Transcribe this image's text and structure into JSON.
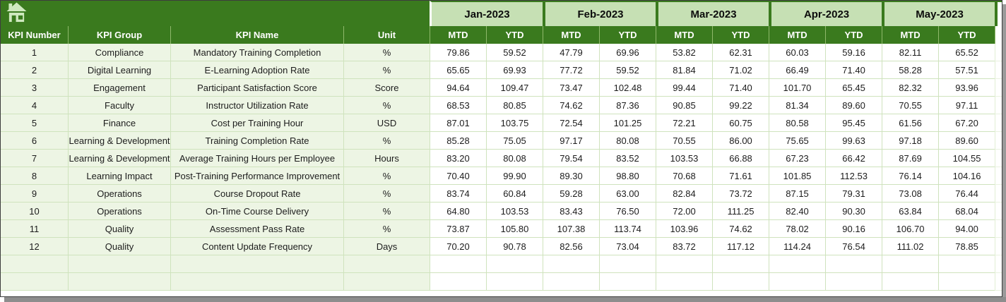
{
  "colors": {
    "header_dark_green": "#3A7A1E",
    "month_light_green": "#C6E0B4",
    "left_column_bg": "#EDF5E4",
    "gridline_green": "#CFE3BD",
    "header_text": "#ffffff",
    "body_text": "#1c1c1c",
    "frame_shadow_gray": "#8d8d8d"
  },
  "table": {
    "home_icon": "home",
    "left_headers": [
      "KPI Number",
      "KPI Group",
      "KPI Name",
      "Unit"
    ],
    "months": [
      "Jan-2023",
      "Feb-2023",
      "Mar-2023",
      "Apr-2023",
      "May-2023"
    ],
    "sub_headers": [
      "MTD",
      "YTD"
    ],
    "rows": [
      {
        "kpi_number": "1",
        "kpi_group": "Compliance",
        "kpi_name": "Mandatory Training Completion",
        "unit": "%",
        "values": [
          "79.86",
          "59.52",
          "47.79",
          "69.96",
          "53.82",
          "62.31",
          "60.03",
          "59.16",
          "82.11",
          "65.52"
        ]
      },
      {
        "kpi_number": "2",
        "kpi_group": "Digital Learning",
        "kpi_name": "E-Learning Adoption Rate",
        "unit": "%",
        "values": [
          "65.65",
          "69.93",
          "77.72",
          "59.52",
          "81.84",
          "71.02",
          "66.49",
          "71.40",
          "58.28",
          "57.51"
        ]
      },
      {
        "kpi_number": "3",
        "kpi_group": "Engagement",
        "kpi_name": "Participant Satisfaction Score",
        "unit": "Score",
        "values": [
          "94.64",
          "109.47",
          "73.47",
          "102.48",
          "99.44",
          "71.40",
          "101.70",
          "65.45",
          "82.32",
          "93.96"
        ]
      },
      {
        "kpi_number": "4",
        "kpi_group": "Faculty",
        "kpi_name": "Instructor Utilization Rate",
        "unit": "%",
        "values": [
          "68.53",
          "80.85",
          "74.62",
          "87.36",
          "90.85",
          "99.22",
          "81.34",
          "89.60",
          "70.55",
          "97.11"
        ]
      },
      {
        "kpi_number": "5",
        "kpi_group": "Finance",
        "kpi_name": "Cost per Training Hour",
        "unit": "USD",
        "values": [
          "87.01",
          "103.75",
          "72.54",
          "101.25",
          "72.21",
          "60.75",
          "80.58",
          "95.45",
          "61.56",
          "67.20"
        ]
      },
      {
        "kpi_number": "6",
        "kpi_group": "Learning & Development",
        "kpi_name": "Training Completion Rate",
        "unit": "%",
        "values": [
          "85.28",
          "75.05",
          "97.17",
          "80.08",
          "70.55",
          "86.00",
          "75.65",
          "99.63",
          "97.18",
          "89.60"
        ]
      },
      {
        "kpi_number": "7",
        "kpi_group": "Learning & Development",
        "kpi_name": "Average Training Hours per Employee",
        "unit": "Hours",
        "values": [
          "83.20",
          "80.08",
          "79.54",
          "83.52",
          "103.53",
          "66.88",
          "67.23",
          "66.42",
          "87.69",
          "104.55"
        ]
      },
      {
        "kpi_number": "8",
        "kpi_group": "Learning Impact",
        "kpi_name": "Post-Training Performance Improvement",
        "unit": "%",
        "values": [
          "70.40",
          "99.90",
          "89.30",
          "98.80",
          "70.68",
          "71.61",
          "101.85",
          "112.53",
          "76.14",
          "104.16"
        ]
      },
      {
        "kpi_number": "9",
        "kpi_group": "Operations",
        "kpi_name": "Course Dropout Rate",
        "unit": "%",
        "values": [
          "83.74",
          "60.84",
          "59.28",
          "63.00",
          "82.84",
          "73.72",
          "87.15",
          "79.31",
          "73.08",
          "76.44"
        ]
      },
      {
        "kpi_number": "10",
        "kpi_group": "Operations",
        "kpi_name": "On-Time Course Delivery",
        "unit": "%",
        "values": [
          "64.80",
          "103.53",
          "83.43",
          "76.50",
          "72.00",
          "111.25",
          "82.40",
          "90.30",
          "63.84",
          "68.04"
        ]
      },
      {
        "kpi_number": "11",
        "kpi_group": "Quality",
        "kpi_name": "Assessment Pass Rate",
        "unit": "%",
        "values": [
          "73.87",
          "105.80",
          "107.38",
          "113.74",
          "103.96",
          "74.62",
          "78.02",
          "90.16",
          "106.70",
          "94.00"
        ]
      },
      {
        "kpi_number": "12",
        "kpi_group": "Quality",
        "kpi_name": "Content Update Frequency",
        "unit": "Days",
        "values": [
          "70.20",
          "90.78",
          "82.56",
          "73.04",
          "83.72",
          "117.12",
          "114.24",
          "76.54",
          "111.02",
          "78.85"
        ]
      }
    ],
    "empty_row_count": 2
  }
}
